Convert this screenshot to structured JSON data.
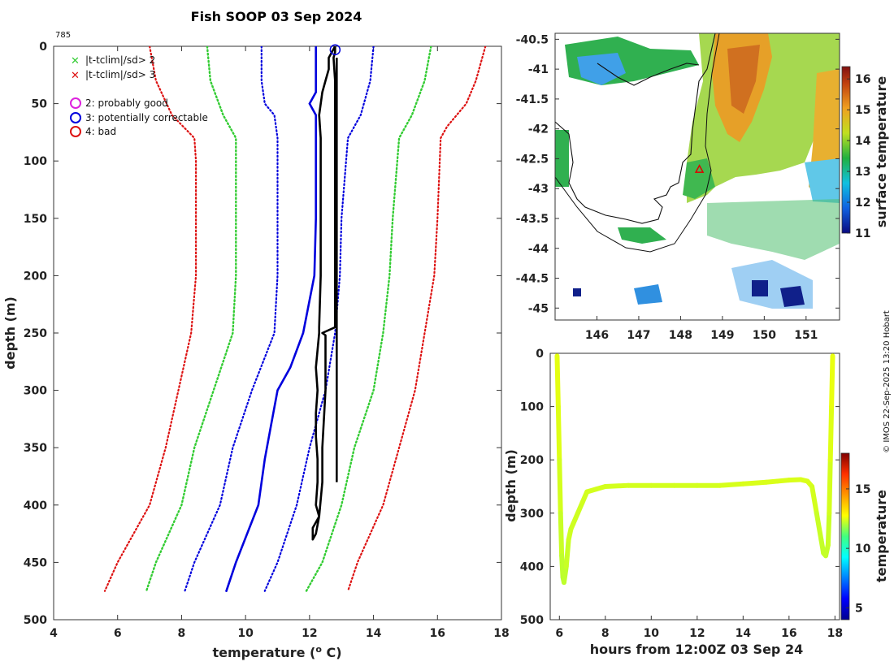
{
  "header": {
    "title": "Fish SOOP 03 Sep 2024",
    "profile_id": "785",
    "credit": "© IMOS 22-Sep-2025 13:20 Hobart"
  },
  "legend": {
    "x_green": "|t-tclim|/sd> 2",
    "x_red": "|t-tclim|/sd> 3",
    "c_magenta": "2: probably good",
    "c_blue": "3: potentially correctable",
    "c_red": "4: bad"
  },
  "colors": {
    "green": "#33cc33",
    "red": "#dd1111",
    "blue": "#0000dd",
    "magenta": "#dd22dd",
    "black": "#000000"
  },
  "chart_data": [
    {
      "type": "line",
      "panel": "profile",
      "title": "Fish SOOP 03 Sep 2024",
      "xlabel": "temperature (o C)",
      "ylabel": "depth (m)",
      "xlim": [
        4,
        18
      ],
      "ylim": [
        0,
        500
      ],
      "y_reversed": true,
      "xticks": [
        "4",
        "6",
        "8",
        "10",
        "12",
        "14",
        "16",
        "18"
      ],
      "yticks": [
        "0",
        "50",
        "100",
        "150",
        "200",
        "250",
        "300",
        "350",
        "400",
        "450",
        "500"
      ],
      "climatology": [
        {
          "name": "clim -3sd",
          "style": "red-dotted",
          "depth": [
            0,
            30,
            60,
            80,
            100,
            150,
            200,
            250,
            300,
            350,
            400,
            450,
            475
          ],
          "temp": [
            7.0,
            7.2,
            7.7,
            8.4,
            8.45,
            8.45,
            8.45,
            8.3,
            7.9,
            7.5,
            7.0,
            6.0,
            5.6
          ]
        },
        {
          "name": "clim -2sd",
          "style": "green-dotted",
          "depth": [
            0,
            30,
            60,
            80,
            100,
            150,
            200,
            250,
            300,
            350,
            400,
            450,
            475
          ],
          "temp": [
            8.8,
            8.9,
            9.3,
            9.7,
            9.7,
            9.7,
            9.7,
            9.6,
            9.0,
            8.4,
            8.0,
            7.2,
            6.9
          ]
        },
        {
          "name": "clim mean",
          "style": "blue-solid",
          "depth": [
            0,
            40,
            50,
            60,
            80,
            150,
            200,
            250,
            280,
            300,
            330,
            360,
            400,
            450,
            475
          ],
          "temp": [
            12.2,
            12.2,
            12.0,
            12.2,
            12.2,
            12.2,
            12.15,
            11.8,
            11.4,
            11.0,
            10.8,
            10.6,
            10.4,
            9.7,
            9.4
          ]
        },
        {
          "name": "clim -1sd",
          "style": "blue-dotted",
          "depth": [
            0,
            30,
            50,
            60,
            80,
            150,
            200,
            250,
            300,
            350,
            400,
            450,
            475
          ],
          "temp": [
            10.5,
            10.5,
            10.6,
            10.9,
            11.0,
            11.0,
            11.0,
            10.9,
            10.2,
            9.6,
            9.2,
            8.4,
            8.1
          ]
        },
        {
          "name": "clim +1sd",
          "style": "blue-dotted",
          "depth": [
            0,
            30,
            60,
            80,
            150,
            200,
            250,
            300,
            350,
            400,
            450,
            475
          ],
          "temp": [
            14.0,
            13.9,
            13.6,
            13.2,
            13.0,
            12.95,
            12.8,
            12.5,
            12.0,
            11.6,
            11.0,
            10.6
          ]
        },
        {
          "name": "clim +2sd",
          "style": "green-dotted",
          "depth": [
            0,
            30,
            60,
            80,
            150,
            200,
            250,
            300,
            350,
            400,
            450,
            475
          ],
          "temp": [
            15.8,
            15.6,
            15.2,
            14.8,
            14.6,
            14.5,
            14.3,
            14.0,
            13.4,
            13.0,
            12.4,
            11.9
          ]
        },
        {
          "name": "clim +3sd",
          "style": "red-dotted",
          "depth": [
            0,
            30,
            50,
            70,
            80,
            150,
            200,
            250,
            300,
            350,
            400,
            450,
            475
          ],
          "temp": [
            17.5,
            17.2,
            16.9,
            16.3,
            16.1,
            16.0,
            15.9,
            15.6,
            15.3,
            14.8,
            14.3,
            13.5,
            13.2
          ]
        }
      ],
      "profile": {
        "name": "observed profile",
        "depth": [
          0,
          5,
          10,
          20,
          30,
          40,
          60,
          80,
          100,
          150,
          200,
          245,
          250,
          280,
          300,
          320,
          340,
          360,
          380,
          400,
          410,
          420,
          430,
          425,
          410,
          380,
          350,
          300,
          252,
          250,
          245,
          200,
          150,
          100,
          60,
          30,
          10,
          5,
          0
        ],
        "temp": [
          12.8,
          12.7,
          12.6,
          12.6,
          12.5,
          12.4,
          12.3,
          12.35,
          12.35,
          12.35,
          12.35,
          12.3,
          12.3,
          12.2,
          12.25,
          12.2,
          12.2,
          12.25,
          12.25,
          12.2,
          12.3,
          12.1,
          12.1,
          12.2,
          12.3,
          12.4,
          12.4,
          12.5,
          12.5,
          12.4,
          12.8,
          12.8,
          12.8,
          12.8,
          12.8,
          12.8,
          12.75,
          12.8,
          12.8
        ]
      },
      "profile_tail": {
        "depth": [
          10,
          100,
          200,
          300,
          380
        ],
        "temp": [
          12.85,
          12.85,
          12.85,
          12.85,
          12.85
        ]
      },
      "flag_marker": {
        "label": "3: potentially correctable",
        "depth": 3,
        "temp": 12.8
      }
    },
    {
      "type": "heatmap",
      "panel": "map",
      "xlabel": "",
      "ylabel": "",
      "xlim": [
        145.0,
        151.8
      ],
      "ylim": [
        -45.2,
        -40.4
      ],
      "xticks": [
        "146",
        "147",
        "148",
        "149",
        "150",
        "151"
      ],
      "yticks": [
        "-40.5",
        "-41",
        "-41.5",
        "-42",
        "-42.5",
        "-43",
        "-43.5",
        "-44",
        "-44.5",
        "-45"
      ],
      "colorbar_label": "surface temperature",
      "colorbar_ticks": [
        "11",
        "12",
        "13",
        "14",
        "15",
        "16"
      ],
      "colorbar_range": [
        11,
        16.4
      ],
      "drop_location": {
        "lon": 148.45,
        "lat": -42.68
      }
    },
    {
      "type": "scatter",
      "panel": "time-depth",
      "xlabel": "hours from 12:00Z 03 Sep 24",
      "ylabel": "depth (m)",
      "xlim": [
        5.6,
        18.2
      ],
      "ylim": [
        0,
        500
      ],
      "y_reversed": true,
      "xticks": [
        "6",
        "8",
        "10",
        "12",
        "14",
        "16",
        "18"
      ],
      "yticks": [
        "0",
        "100",
        "200",
        "300",
        "400",
        "500"
      ],
      "colorbar_label": "temperature",
      "colorbar_ticks": [
        "5",
        "10",
        "15"
      ],
      "colorbar_range": [
        4,
        18
      ],
      "track": {
        "hours": [
          5.9,
          5.95,
          6.0,
          6.05,
          6.1,
          6.15,
          6.2,
          6.3,
          6.4,
          6.5,
          6.6,
          6.8,
          7.0,
          7.2,
          7.6,
          8.0,
          9.0,
          10.0,
          11.0,
          12.0,
          13.0,
          14.0,
          15.0,
          15.5,
          16.0,
          16.5,
          16.8,
          17.0,
          17.2,
          17.4,
          17.5,
          17.6,
          17.7,
          17.75,
          17.8,
          17.85,
          17.9
        ],
        "depth": [
          5,
          100,
          200,
          300,
          380,
          420,
          430,
          400,
          350,
          330,
          320,
          300,
          280,
          260,
          255,
          250,
          248,
          248,
          248,
          248,
          248,
          245,
          242,
          240,
          238,
          237,
          240,
          250,
          300,
          350,
          375,
          380,
          360,
          300,
          200,
          100,
          5
        ],
        "temp": [
          12.5,
          12.5,
          12.4,
          12.3,
          12.2,
          12.1,
          12.1,
          12.2,
          12.3,
          12.3,
          12.3,
          12.3,
          12.3,
          12.35,
          12.35,
          12.35,
          12.35,
          12.35,
          12.35,
          12.35,
          12.35,
          12.4,
          12.4,
          12.4,
          12.4,
          12.4,
          12.4,
          12.4,
          12.3,
          12.2,
          12.2,
          12.2,
          12.2,
          12.3,
          12.4,
          12.5,
          12.6
        ]
      }
    }
  ]
}
